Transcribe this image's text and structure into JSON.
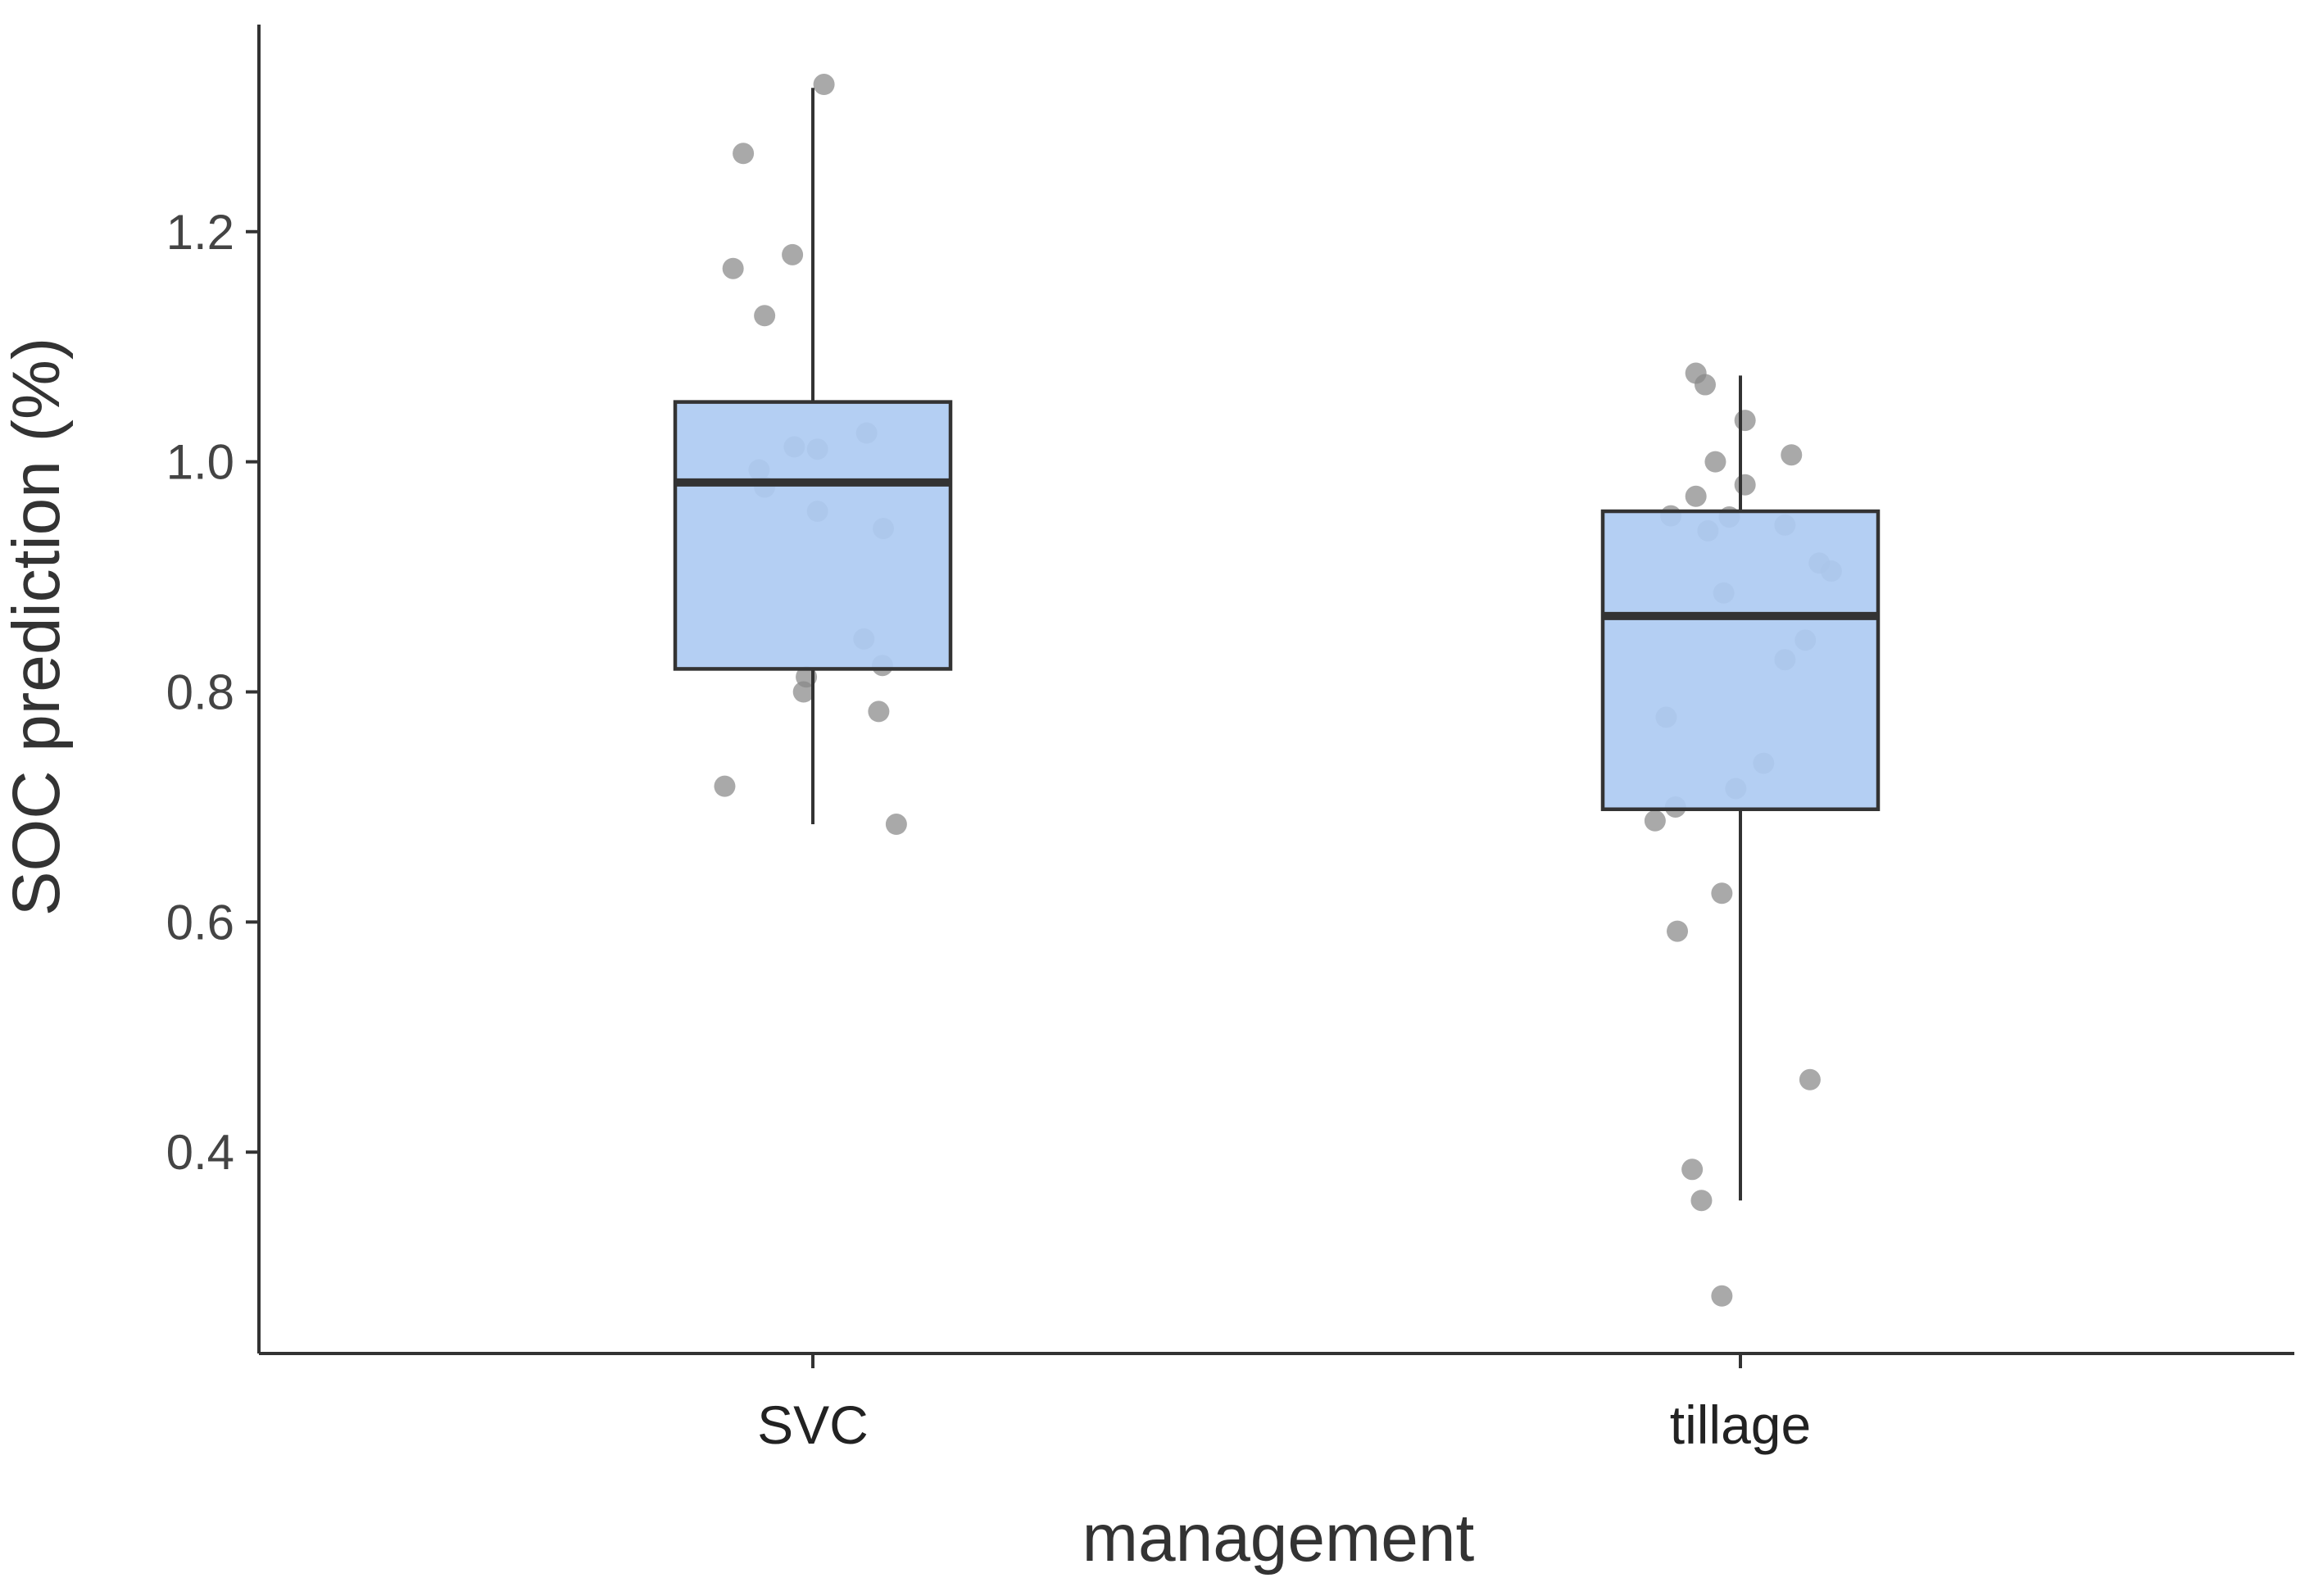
{
  "chart_data": {
    "type": "boxplot",
    "title": "",
    "xlabel": "management",
    "ylabel": "SOC prediction (%)",
    "ylim": [
      0.225,
      1.38
    ],
    "yticks": [
      0.4,
      0.6,
      0.8,
      1.0,
      1.2
    ],
    "ytick_labels": [
      "0.4",
      "0.6",
      "0.8",
      "1.0",
      "1.2"
    ],
    "categories": [
      "SVC",
      "tillage"
    ],
    "box_fill": "#aecbf2",
    "box_stroke": "#333333",
    "point_color": "#888888",
    "boxes": [
      {
        "name": "SVC",
        "whisker_low": 0.685,
        "q1": 0.82,
        "median": 0.982,
        "q3": 1.052,
        "whisker_high": 1.325,
        "points": [
          {
            "jitter": 0.012,
            "value": 1.328
          },
          {
            "jitter": -0.075,
            "value": 1.268
          },
          {
            "jitter": -0.086,
            "value": 1.168
          },
          {
            "jitter": -0.022,
            "value": 1.18
          },
          {
            "jitter": -0.052,
            "value": 1.127
          },
          {
            "jitter": -0.02,
            "value": 1.013
          },
          {
            "jitter": 0.005,
            "value": 1.011
          },
          {
            "jitter": 0.058,
            "value": 1.025
          },
          {
            "jitter": -0.058,
            "value": 0.993
          },
          {
            "jitter": -0.052,
            "value": 0.978
          },
          {
            "jitter": 0.005,
            "value": 0.957
          },
          {
            "jitter": 0.076,
            "value": 0.942
          },
          {
            "jitter": 0.055,
            "value": 0.846
          },
          {
            "jitter": 0.075,
            "value": 0.823
          },
          {
            "jitter": -0.007,
            "value": 0.813
          },
          {
            "jitter": -0.01,
            "value": 0.8
          },
          {
            "jitter": 0.071,
            "value": 0.783
          },
          {
            "jitter": -0.095,
            "value": 0.718
          },
          {
            "jitter": 0.09,
            "value": 0.685
          }
        ]
      },
      {
        "name": "tillage",
        "whisker_low": 0.358,
        "q1": 0.698,
        "median": 0.866,
        "q3": 0.957,
        "whisker_high": 1.075,
        "points": [
          {
            "jitter": -0.048,
            "value": 1.077
          },
          {
            "jitter": -0.038,
            "value": 1.067
          },
          {
            "jitter": 0.005,
            "value": 1.036
          },
          {
            "jitter": 0.055,
            "value": 1.006
          },
          {
            "jitter": -0.027,
            "value": 1.0
          },
          {
            "jitter": 0.005,
            "value": 0.98
          },
          {
            "jitter": -0.048,
            "value": 0.97
          },
          {
            "jitter": -0.075,
            "value": 0.953
          },
          {
            "jitter": -0.035,
            "value": 0.94
          },
          {
            "jitter": -0.012,
            "value": 0.952
          },
          {
            "jitter": 0.048,
            "value": 0.945
          },
          {
            "jitter": 0.085,
            "value": 0.912
          },
          {
            "jitter": 0.098,
            "value": 0.905
          },
          {
            "jitter": -0.018,
            "value": 0.886
          },
          {
            "jitter": 0.07,
            "value": 0.845
          },
          {
            "jitter": 0.048,
            "value": 0.828
          },
          {
            "jitter": -0.08,
            "value": 0.778
          },
          {
            "jitter": 0.025,
            "value": 0.738
          },
          {
            "jitter": -0.005,
            "value": 0.716
          },
          {
            "jitter": -0.07,
            "value": 0.7
          },
          {
            "jitter": -0.092,
            "value": 0.688
          },
          {
            "jitter": -0.02,
            "value": 0.625
          },
          {
            "jitter": -0.068,
            "value": 0.592
          },
          {
            "jitter": 0.075,
            "value": 0.463
          },
          {
            "jitter": -0.052,
            "value": 0.385
          },
          {
            "jitter": -0.042,
            "value": 0.358
          },
          {
            "jitter": -0.02,
            "value": 0.275
          }
        ]
      }
    ]
  }
}
